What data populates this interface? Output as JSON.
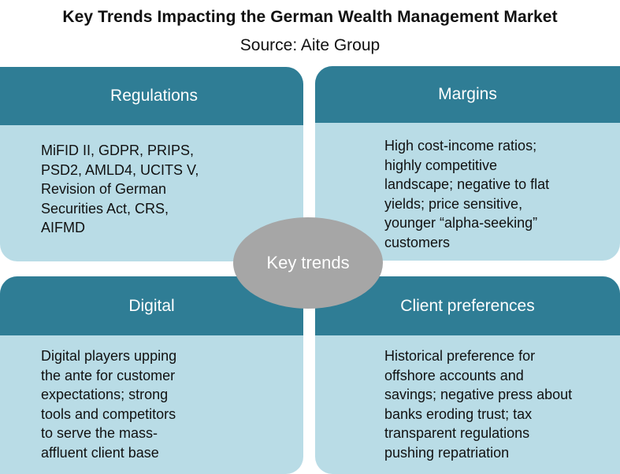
{
  "header": {
    "title": "Key Trends Impacting the German Wealth Management Market",
    "subtitle": "Source: Aite Group"
  },
  "center": {
    "label": "Key trends"
  },
  "quadrants": [
    {
      "heading": "Regulations",
      "text": "MiFID II, GDPR, PRIPS,\nPSD2, AMLD4, UCITS V,\nRevision of German\nSecurities Act, CRS,\nAIFMD"
    },
    {
      "heading": "Margins",
      "text": "High cost-income ratios;\nhighly competitive\nlandscape; negative to flat\nyields; price sensitive,\nyounger “alpha-seeking”\ncustomers"
    },
    {
      "heading": "Digital",
      "text": "Digital players upping\nthe ante for customer\nexpectations; strong\ntools and competitors\nto serve the mass-\naffluent client base"
    },
    {
      "heading": "Client preferences",
      "text": "Historical preference for\noffshore accounts and\nsavings; negative press about\nbanks eroding trust; tax\ntransparent regulations\npushing repatriation"
    }
  ],
  "colors": {
    "header_fill": "#2f7d95",
    "body_fill": "#b9dce6",
    "center_fill": "#a6a6a6"
  }
}
